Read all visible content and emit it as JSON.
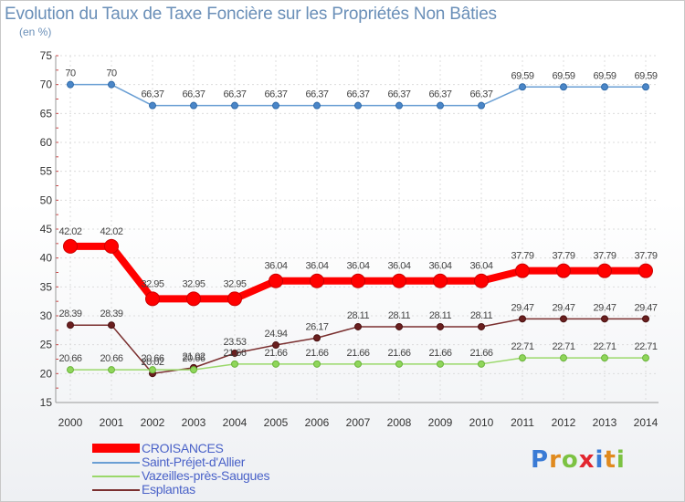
{
  "title": "Evolution du Taux de Taxe Foncière sur les Propriétés Non Bâties",
  "unit": "(en %)",
  "logo": [
    "P",
    "r",
    "o",
    "x",
    "i",
    "t",
    "i"
  ],
  "chart_data": {
    "type": "line",
    "title": "Evolution du Taux de Taxe Foncière sur les Propriétés Non Bâties",
    "ylabel": "(en %)",
    "xlabel": "",
    "ylim": [
      15,
      75
    ],
    "yticks": [
      15,
      20,
      25,
      30,
      35,
      40,
      45,
      50,
      55,
      60,
      65,
      70,
      75
    ],
    "categories": [
      "2000",
      "2001",
      "2002",
      "2003",
      "2004",
      "2005",
      "2006",
      "2007",
      "2008",
      "2009",
      "2010",
      "2011",
      "2012",
      "2013",
      "2014"
    ],
    "grid": true,
    "series": [
      {
        "name": "Saint-Préjet-d'Allier",
        "color": "#6a9fd4",
        "values": [
          70,
          70,
          66.37,
          66.37,
          66.37,
          66.37,
          66.37,
          66.37,
          66.37,
          66.37,
          66.37,
          69.59,
          69.59,
          69.59,
          69.59
        ],
        "labels": [
          "70",
          "70",
          "66.37",
          "66.37",
          "66.37",
          "66.37",
          "66.37",
          "66.37",
          "66.37",
          "66.37",
          "66.37",
          "69.59",
          "69.59",
          "69.59",
          "69.59"
        ]
      },
      {
        "name": "CROISANCES",
        "color": "#ff0000",
        "values": [
          42.02,
          42.02,
          32.95,
          32.95,
          32.95,
          36.04,
          36.04,
          36.04,
          36.04,
          36.04,
          36.04,
          37.79,
          37.79,
          37.79,
          37.79
        ],
        "labels": [
          "42.02",
          "42.02",
          "32.95",
          "32.95",
          "32.95",
          "36.04",
          "36.04",
          "36.04",
          "36.04",
          "36.04",
          "36.04",
          "37.79",
          "37.79",
          "37.79",
          "37.79"
        ]
      },
      {
        "name": "Esplantas",
        "color": "#7a2f2f",
        "values": [
          28.39,
          28.39,
          20.02,
          21.02,
          23.53,
          24.94,
          26.17,
          28.11,
          28.11,
          28.11,
          28.11,
          29.47,
          29.47,
          29.47,
          29.47
        ],
        "labels": [
          "28.39",
          "28.39",
          "20.02",
          "21.02",
          "23.53",
          "24.94",
          "26.17",
          "28.11",
          "28.11",
          "28.11",
          "28.11",
          "29.47",
          "29.47",
          "29.47",
          "29.47"
        ]
      },
      {
        "name": "Vazeilles-près-Saugues",
        "color": "#9ad86a",
        "values": [
          20.66,
          20.66,
          20.66,
          20.66,
          21.66,
          21.66,
          21.66,
          21.66,
          21.66,
          21.66,
          21.66,
          22.71,
          22.71,
          22.71,
          22.71
        ],
        "labels": [
          "20.66",
          "20.66",
          "20.66",
          "20.66",
          "21.66",
          "21.66",
          "21.66",
          "21.66",
          "21.66",
          "21.66",
          "21.66",
          "22.71",
          "22.71",
          "22.71",
          "22.71"
        ]
      }
    ],
    "legend": [
      {
        "name": "CROISANCES",
        "color": "#ff0000",
        "thick": true
      },
      {
        "name": "Saint-Préjet-d'Allier",
        "color": "#6a9fd4",
        "thick": false
      },
      {
        "name": "Vazeilles-près-Saugues",
        "color": "#9ad86a",
        "thick": false
      },
      {
        "name": "Esplantas",
        "color": "#7a2f2f",
        "thick": false
      }
    ]
  }
}
